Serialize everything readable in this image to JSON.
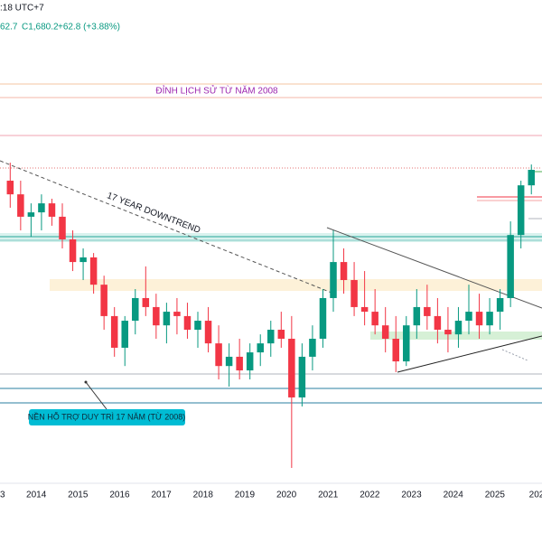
{
  "header": {
    "time": ":18 UTC+7",
    "partial": "62.7",
    "close": "C1,680.2",
    "change": "+62.8 (+3.88%)"
  },
  "chart_data": {
    "type": "candlestick",
    "x": [
      2013.375,
      2013.625,
      2013.875,
      2014.125,
      2014.375,
      2014.625,
      2014.875,
      2015.125,
      2015.375,
      2015.625,
      2015.875,
      2016.125,
      2016.375,
      2016.625,
      2016.875,
      2017.125,
      2017.375,
      2017.625,
      2017.875,
      2018.125,
      2018.375,
      2018.625,
      2018.875,
      2019.125,
      2019.375,
      2019.625,
      2019.875,
      2020.125,
      2020.375,
      2020.625,
      2020.875,
      2021.125,
      2021.375,
      2021.625,
      2021.875,
      2022.125,
      2022.375,
      2022.625,
      2022.875,
      2023.125,
      2023.375,
      2023.625,
      2023.875,
      2024.125,
      2024.375,
      2024.625,
      2024.875,
      2025.125,
      2025.375,
      2025.625,
      2025.875
    ],
    "open": [
      1638,
      1585,
      1498,
      1515,
      1550,
      1498,
      1410,
      1322,
      1340,
      1234,
      1112,
      989,
      1094,
      1182,
      1147,
      1076,
      1129,
      1112,
      1059,
      1094,
      1006,
      918,
      954,
      901,
      971,
      1006,
      1059,
      1024,
      796,
      954,
      1024,
      1182,
      1322,
      1252,
      1147,
      1129,
      1076,
      1024,
      936,
      1076,
      1147,
      1112,
      1059,
      1041,
      1094,
      1129,
      1076,
      1129,
      1182,
      1427,
      1620
    ],
    "high": [
      1708,
      1638,
      1550,
      1585,
      1568,
      1550,
      1445,
      1375,
      1357,
      1269,
      1147,
      1112,
      1217,
      1305,
      1199,
      1164,
      1182,
      1164,
      1129,
      1147,
      1076,
      1006,
      1024,
      1006,
      1041,
      1094,
      1129,
      1112,
      1006,
      1076,
      1217,
      1445,
      1375,
      1322,
      1287,
      1217,
      1147,
      1112,
      1112,
      1217,
      1234,
      1182,
      1147,
      1147,
      1234,
      1199,
      1182,
      1217,
      1480,
      1638,
      1701
    ],
    "low": [
      1533,
      1445,
      1420,
      1445,
      1463,
      1375,
      1287,
      1252,
      1199,
      1059,
      954,
      918,
      1041,
      1112,
      1024,
      1006,
      1041,
      1024,
      989,
      971,
      866,
      838,
      866,
      866,
      918,
      954,
      989,
      522,
      761,
      901,
      989,
      1129,
      1199,
      1112,
      1076,
      1041,
      971,
      894,
      918,
      1024,
      1059,
      1006,
      971,
      989,
      1041,
      1024,
      1041,
      1059,
      1147,
      1375,
      1585
    ],
    "close": [
      1585,
      1498,
      1515,
      1550,
      1498,
      1410,
      1322,
      1340,
      1234,
      1112,
      989,
      1094,
      1182,
      1147,
      1076,
      1129,
      1112,
      1059,
      1094,
      1006,
      918,
      954,
      901,
      971,
      1006,
      1059,
      1024,
      796,
      954,
      1024,
      1182,
      1322,
      1252,
      1147,
      1129,
      1076,
      1024,
      936,
      1076,
      1147,
      1112,
      1059,
      1041,
      1094,
      1129,
      1076,
      1129,
      1182,
      1427,
      1620,
      1680.2
    ],
    "up_color": "#089981",
    "down_color": "#f23645",
    "xlim": [
      2013.13,
      2026.13
    ],
    "ylim": [
      480,
      2340
    ],
    "xticks": [
      {
        "value": 2013,
        "label": "3"
      },
      2014,
      2015,
      2016,
      2017,
      2018,
      2019,
      2020,
      2021,
      2022,
      2023,
      2024,
      2025,
      {
        "value": 2026,
        "label": "202"
      }
    ],
    "annotations": {
      "ath": "ĐỈNH LỊCH SỬ TỪ NĂM 2008",
      "downtrend": "17 YEAR DOWNTREND",
      "support": "NỀN HỖ TRỢ  DUY TRÌ 17 NĂM (TỪ 2008)"
    }
  }
}
